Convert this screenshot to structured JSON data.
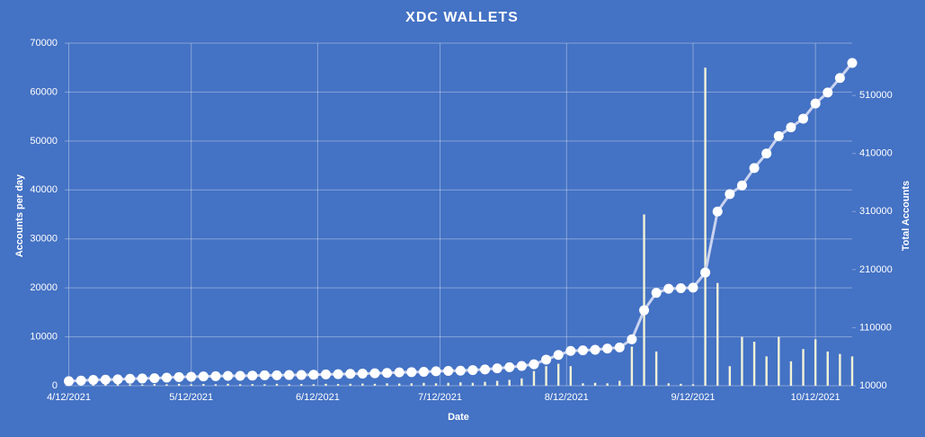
{
  "chart_data": {
    "type": "combo",
    "title": "XDC WALLETS",
    "x_label": "Date",
    "y_label": "Accounts per day",
    "y2_label": "Total Accounts",
    "x": [
      0,
      3,
      6,
      9,
      12,
      15,
      18,
      21,
      24,
      27,
      30,
      33,
      36,
      39,
      42,
      45,
      48,
      51,
      54,
      57,
      60,
      63,
      66,
      69,
      72,
      75,
      78,
      81,
      84,
      87,
      90,
      93,
      96,
      99,
      102,
      105,
      108,
      111,
      114,
      117,
      120,
      123,
      126,
      129,
      132,
      135,
      138,
      141,
      144,
      147,
      150,
      153,
      156,
      159,
      162,
      165,
      168,
      171,
      174,
      177,
      180,
      183,
      186,
      189,
      192
    ],
    "xlim": [
      -1,
      192
    ],
    "xticks": [
      {
        "value": 0,
        "label": "4/12/2021"
      },
      {
        "value": 30,
        "label": "5/12/2021"
      },
      {
        "value": 61,
        "label": "6/12/2021"
      },
      {
        "value": 91,
        "label": "7/12/2021"
      },
      {
        "value": 122,
        "label": "8/12/2021"
      },
      {
        "value": 153,
        "label": "9/12/2021"
      },
      {
        "value": 183,
        "label": "10/12/2021"
      }
    ],
    "ylim": [
      0,
      70000
    ],
    "yticks": [
      0,
      10000,
      20000,
      30000,
      40000,
      50000,
      60000,
      70000
    ],
    "y2lim": [
      10000,
      600000
    ],
    "y2ticks": [
      10000,
      110000,
      210000,
      310000,
      410000,
      510000
    ],
    "grid": true,
    "series": [
      {
        "type": "bar",
        "color": "#f2f2d8",
        "values": [
          400,
          300,
          350,
          300,
          400,
          300,
          250,
          350,
          300,
          400,
          300,
          350,
          300,
          400,
          300,
          350,
          300,
          400,
          300,
          350,
          300,
          400,
          350,
          400,
          450,
          400,
          500,
          450,
          500,
          600,
          500,
          600,
          700,
          600,
          800,
          1000,
          1200,
          1500,
          3000,
          4000,
          4500,
          4000,
          500,
          600,
          500,
          1000,
          8000,
          35000,
          7000,
          500,
          400,
          300,
          65000,
          21000,
          4000,
          10000,
          9000,
          6000,
          10000,
          5000,
          7500,
          9500,
          7000,
          6500,
          6000
        ]
      },
      {
        "type": "line",
        "axis": "y2",
        "color": "#c9d3f0",
        "marker_color": "#ffffff",
        "values": [
          18000,
          19000,
          20000,
          20500,
          21000,
          22000,
          22500,
          23000,
          24000,
          25000,
          25500,
          26000,
          26500,
          27000,
          27000,
          27500,
          28000,
          28000,
          28500,
          28500,
          29000,
          29500,
          30000,
          30500,
          31000,
          31500,
          32000,
          33000,
          33500,
          34000,
          35000,
          35500,
          36000,
          37000,
          38000,
          40000,
          42000,
          44000,
          47000,
          55000,
          63000,
          70000,
          71000,
          72000,
          74000,
          76000,
          90000,
          140000,
          170000,
          177000,
          178000,
          179000,
          205000,
          310000,
          340000,
          355000,
          385000,
          410000,
          440000,
          455000,
          470000,
          496000,
          515000,
          540000,
          566000
        ]
      }
    ]
  }
}
